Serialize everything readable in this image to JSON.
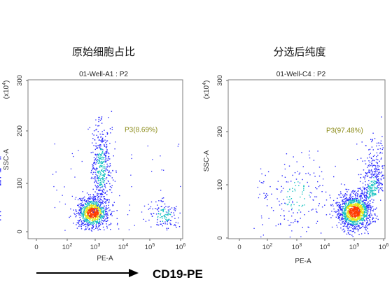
{
  "figure": {
    "marker_label": "CD19-PE"
  },
  "colors": {
    "gate": "#8a8a16",
    "density_low": "#2b2bff",
    "density_mid": "#19c2c2",
    "density_high": "#e6e61a",
    "density_peak": "#ff3a00"
  },
  "chart_data": [
    {
      "type": "scatter",
      "header": "原始细胞占比",
      "title": "01-Well-A1 : P2",
      "xlabel": "PE-A",
      "ylabel": "SSC-A",
      "y_multiplier": "(x10",
      "y_multiplier_exp": "4",
      "y_multiplier_close": ")",
      "x_scale": "log",
      "x_ticks": [
        "0",
        "10",
        "10",
        "10",
        "10",
        "10"
      ],
      "x_tick_exps": [
        "",
        "2",
        "3",
        "4",
        "5",
        "6"
      ],
      "y_ticks": [
        "0",
        "100",
        "200",
        "300"
      ],
      "ylim": [
        0,
        300
      ],
      "gate": {
        "name": "P3",
        "percent": "(8.69%)",
        "x_range": [
          "1e4",
          "1e6"
        ],
        "y_range": [
          10,
          190
        ]
      },
      "populations": [
        {
          "name": "main",
          "x_log_center": 2.9,
          "y_center": 40,
          "count": 900
        },
        {
          "name": "upper-arm",
          "x_log_center": 3.2,
          "y_center": 130,
          "count": 450
        },
        {
          "name": "gated",
          "x_log_center": 5.45,
          "y_center": 35,
          "count": 140
        }
      ]
    },
    {
      "type": "scatter",
      "header": "分选后纯度",
      "title": "01-Well-C4 : P2",
      "xlabel": "PE-A",
      "ylabel": "SSC-A",
      "y_multiplier": "(x10",
      "y_multiplier_exp": "4",
      "y_multiplier_close": ")",
      "x_scale": "log",
      "x_ticks": [
        "0",
        "10",
        "10",
        "10",
        "10",
        "10"
      ],
      "x_tick_exps": [
        "",
        "2",
        "3",
        "4",
        "5",
        "6"
      ],
      "y_ticks": [
        "0",
        "100",
        "200",
        "300"
      ],
      "ylim": [
        0,
        300
      ],
      "gate": {
        "name": "P3",
        "percent": "(97.48%)",
        "x_range": [
          "1e4",
          "1e6"
        ],
        "y_range": [
          5,
          190
        ]
      },
      "populations": [
        {
          "name": "main",
          "x_log_center": 5.0,
          "y_center": 50,
          "count": 1200
        },
        {
          "name": "tail",
          "x_log_center": 5.6,
          "y_center": 110,
          "count": 350
        },
        {
          "name": "negatives",
          "x_log_center": 3.0,
          "y_center": 80,
          "count": 160
        }
      ]
    }
  ]
}
